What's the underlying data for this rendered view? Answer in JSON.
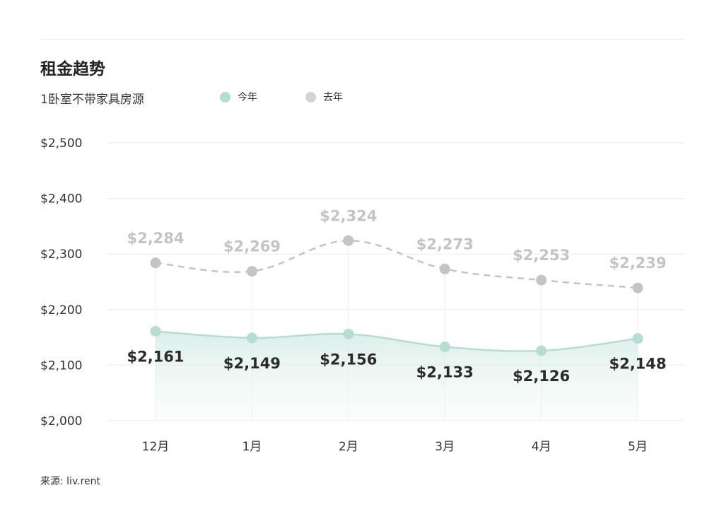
{
  "title": "租金趋势",
  "subtitle": "1卧室不带家具房源",
  "legend": [
    {
      "label": "今年",
      "color": "#b5ddd4"
    },
    {
      "label": "去年",
      "color": "#d3d3d3"
    }
  ],
  "source": "来源: liv.rent",
  "chart_data": {
    "type": "line",
    "categories": [
      "12月",
      "1月",
      "2月",
      "3月",
      "4月",
      "5月"
    ],
    "series": [
      {
        "name": "今年",
        "values": [
          2161,
          2149,
          2156,
          2133,
          2126,
          2148
        ],
        "labels": [
          "$2,161",
          "$2,149",
          "$2,156",
          "$2,133",
          "$2,126",
          "$2,148"
        ],
        "color": "#b5ddd4",
        "style": "solid",
        "area_fill": true
      },
      {
        "name": "去年",
        "values": [
          2284,
          2269,
          2324,
          2273,
          2253,
          2239
        ],
        "labels": [
          "$2,284",
          "$2,269",
          "$2,324",
          "$2,273",
          "$2,253",
          "$2,239"
        ],
        "color": "#c4c4c4",
        "style": "dashed"
      }
    ],
    "ylim": [
      2000,
      2500
    ],
    "yticks": [
      2000,
      2100,
      2200,
      2300,
      2400,
      2500
    ],
    "ytick_labels": [
      "$2,000",
      "$2,100",
      "$2,200",
      "$2,300",
      "$2,400",
      "$2,500"
    ],
    "grid": true,
    "legend_position": "top"
  }
}
